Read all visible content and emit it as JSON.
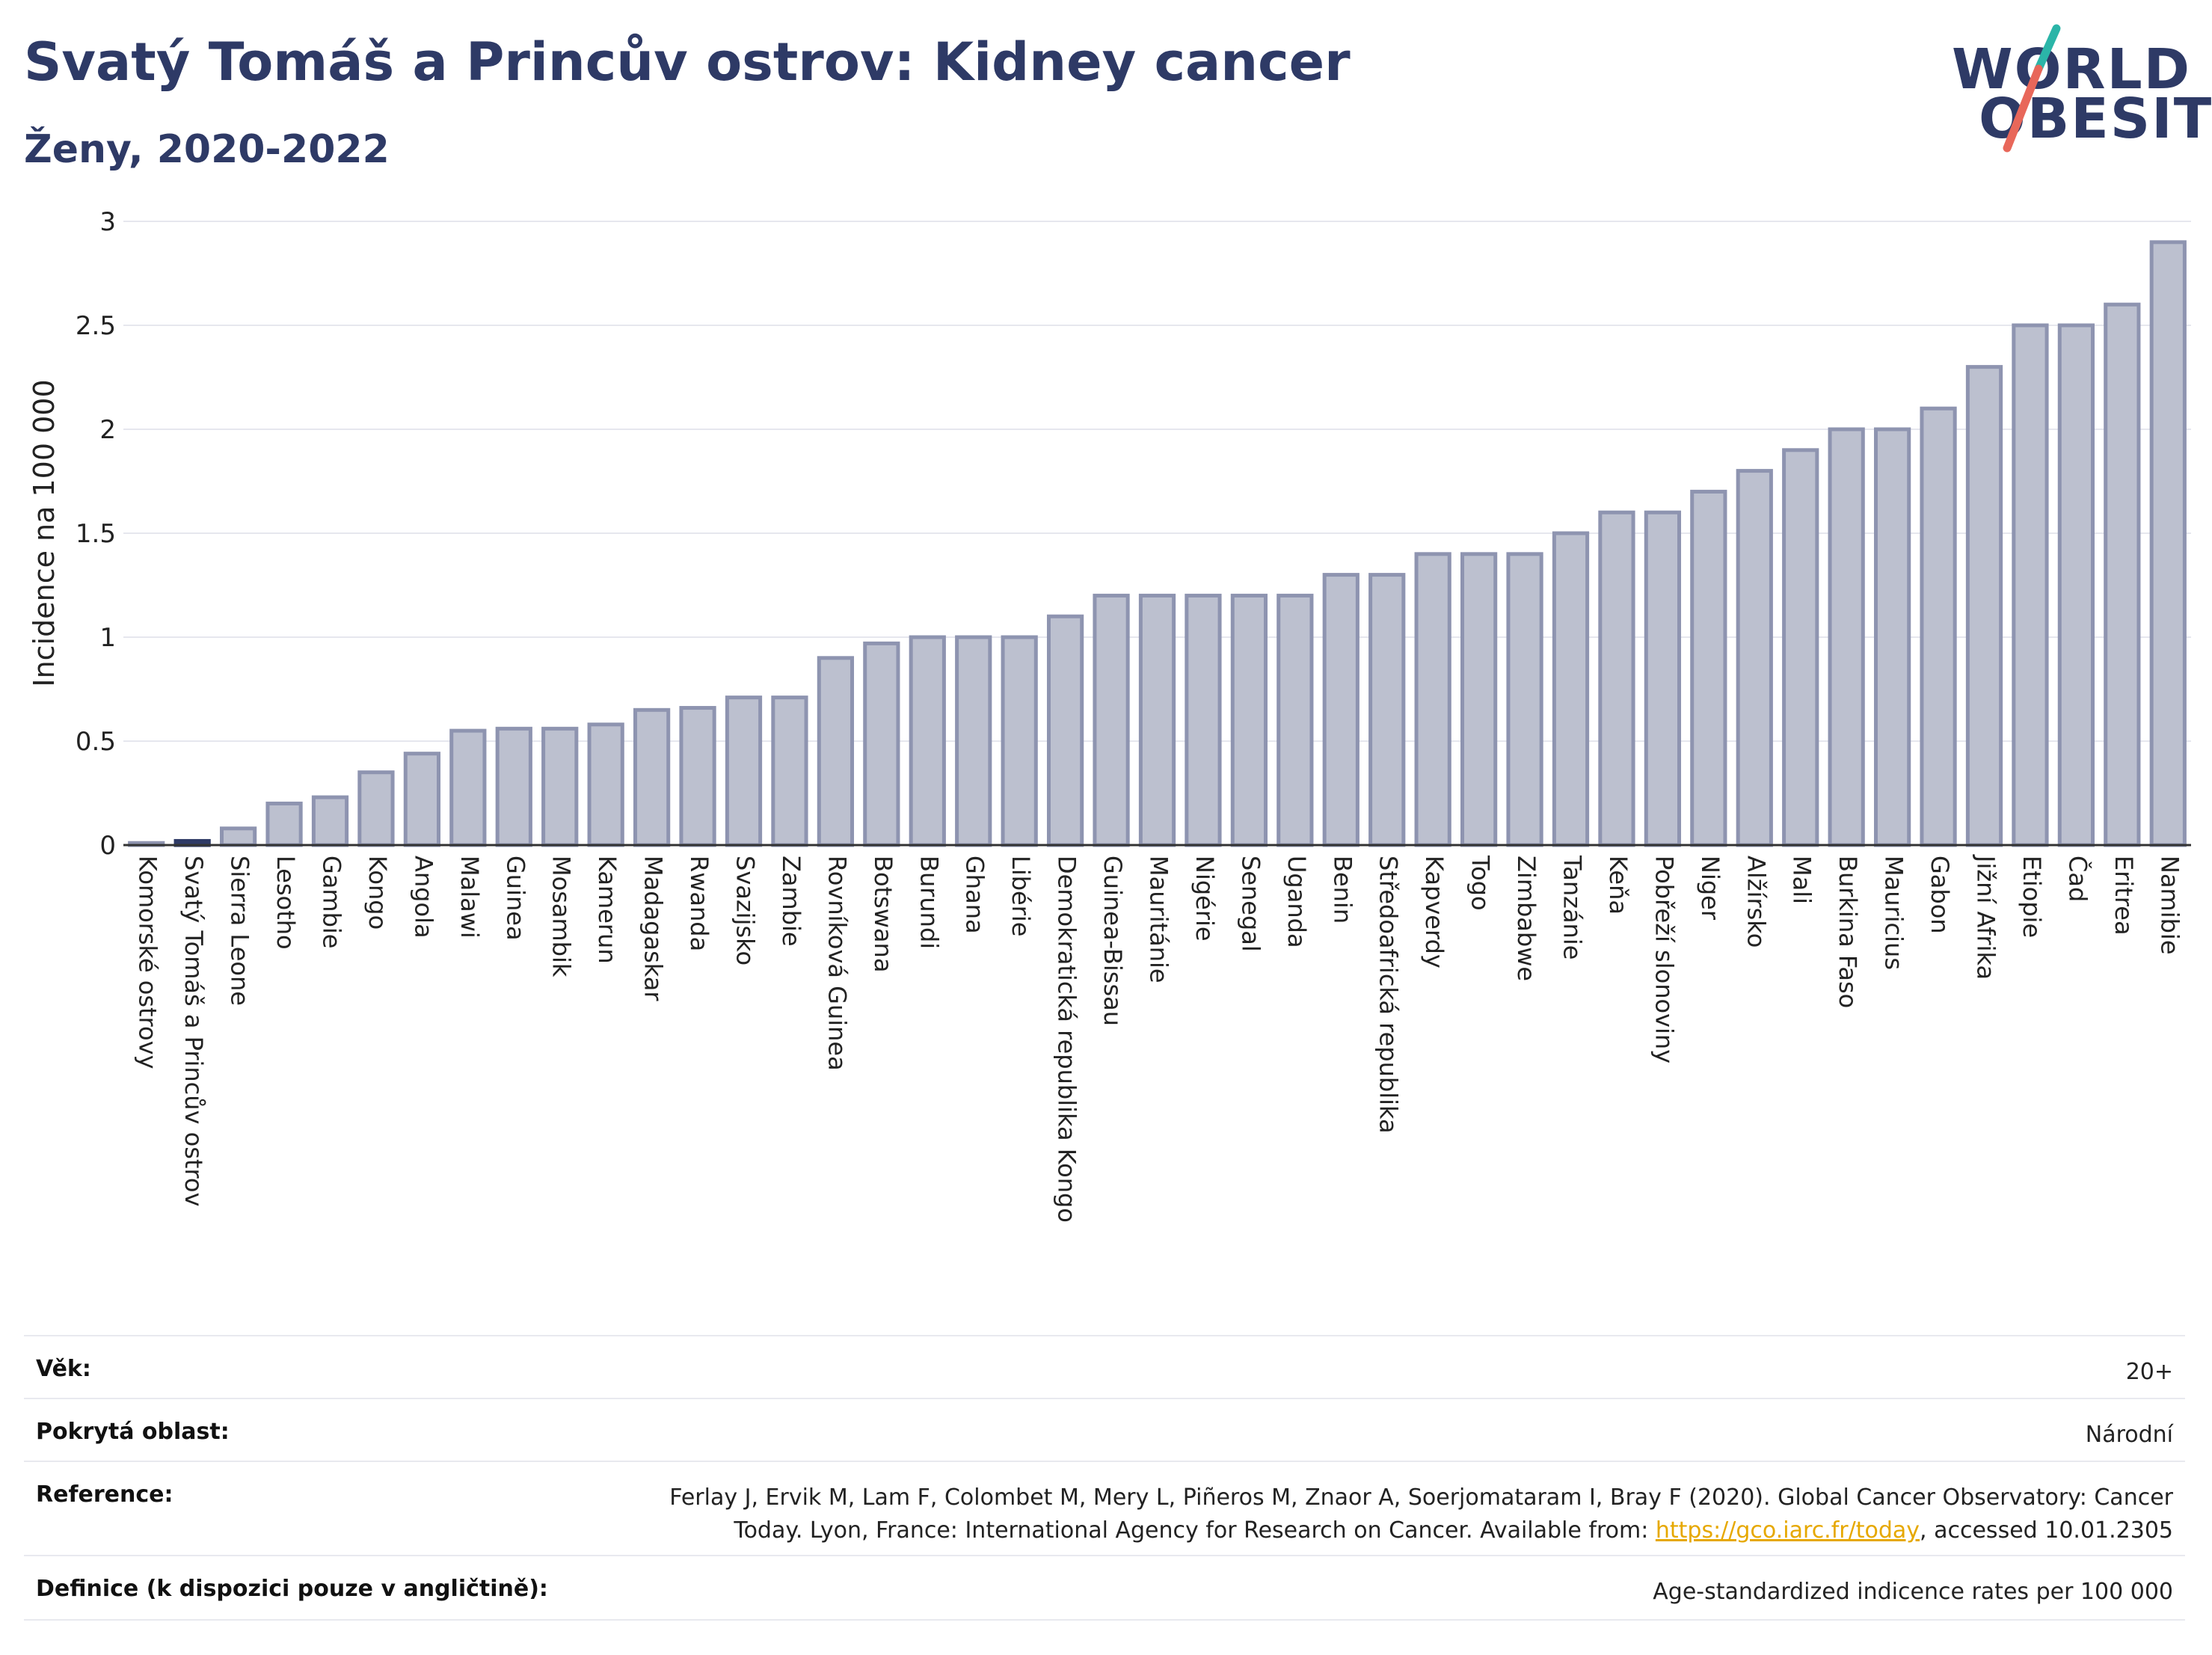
{
  "header": {
    "title": "Svatý Tomáš a Princův ostrov: Kidney cancer",
    "subtitle": "Ženy, 2020-2022"
  },
  "logo": {
    "line1": "WORLD",
    "line2": "OBESITY",
    "accent_colors": [
      "#2bb5a8",
      "#e8675a"
    ]
  },
  "chart_data": {
    "type": "bar",
    "title": "Svatý Tomáš a Princův ostrov: Kidney cancer",
    "subtitle": "Ženy, 2020-2022",
    "xlabel": "",
    "ylabel": "Incidence na 100 000",
    "ylim": [
      0,
      3
    ],
    "yticks": [
      "0",
      "0.5",
      "1",
      "1.5",
      "2",
      "2.5",
      "3"
    ],
    "grid": true,
    "highlight_category": "Svatý Tomáš a Princův ostrov",
    "colors": {
      "bar": "#bcc0cf",
      "bar_border": "#8e94b0",
      "highlight": "#2e3a66"
    },
    "categories": [
      "Komorské ostrovy",
      "Svatý Tomáš a Princův ostrov",
      "Sierra Leone",
      "Lesotho",
      "Gambie",
      "Kongo",
      "Angola",
      "Malawi",
      "Guinea",
      "Mosambik",
      "Kamerun",
      "Madagaskar",
      "Rwanda",
      "Svazijsko",
      "Zambie",
      "Rovníková Guinea",
      "Botswana",
      "Burundi",
      "Ghana",
      "Libérie",
      "Demokratická republika Kongo",
      "Guinea-Bissau",
      "Mauritánie",
      "Nigérie",
      "Senegal",
      "Uganda",
      "Benin",
      "Středoafrická republika",
      "Kapverdy",
      "Togo",
      "Zimbabwe",
      "Tanzánie",
      "Keňa",
      "Pobřeží slonoviny",
      "Niger",
      "Alžírsko",
      "Mali",
      "Burkina Faso",
      "Mauricius",
      "Gabon",
      "Jižní Afrika",
      "Etiopie",
      "Čad",
      "Eritrea",
      "Namibie"
    ],
    "values": [
      0.01,
      0.02,
      0.08,
      0.2,
      0.23,
      0.35,
      0.44,
      0.55,
      0.56,
      0.56,
      0.58,
      0.65,
      0.66,
      0.71,
      0.71,
      0.9,
      0.97,
      1.0,
      1.0,
      1.0,
      1.1,
      1.2,
      1.2,
      1.2,
      1.2,
      1.2,
      1.3,
      1.3,
      1.4,
      1.4,
      1.4,
      1.5,
      1.6,
      1.6,
      1.7,
      1.8,
      1.9,
      2.0,
      2.0,
      2.1,
      2.3,
      2.5,
      2.5,
      2.6,
      2.9
    ]
  },
  "info_table": [
    {
      "key": "Věk:",
      "value": "20+"
    },
    {
      "key": "Pokrytá oblast:",
      "value": "Národní"
    },
    {
      "key": "Reference:",
      "value_line1": "Ferlay J, Ervik M, Lam F, Colombet M, Mery L, Piñeros M, Znaor A, Soerjomataram I, Bray F (2020). Global Cancer Observatory: Cancer",
      "value_line2_pre": "Today. Lyon, France: International Agency for Research on Cancer. Available from: ",
      "link_text": "https://gco.iarc.fr/today",
      "value_line2_post": ", accessed 10.01.2305"
    },
    {
      "key": "Definice (k dispozici pouze v angličtině):",
      "value": "Age-standardized indicence rates per 100 000"
    }
  ]
}
